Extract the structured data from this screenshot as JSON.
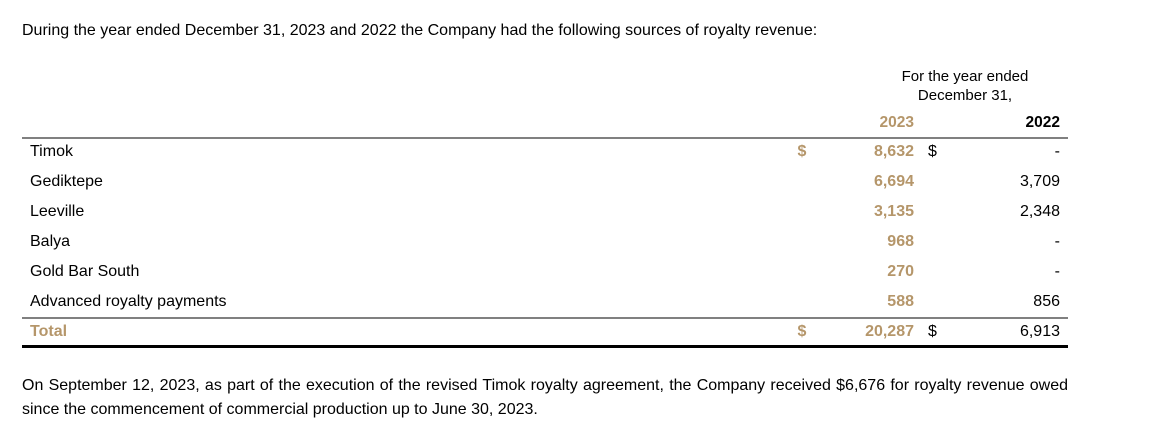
{
  "intro": "During the year ended December 31, 2023 and 2022 the Company had the following sources of royalty revenue:",
  "header": {
    "line1": "For the year ended",
    "line2": "December 31,",
    "col1": "2023",
    "col2": "2022"
  },
  "currency": "$",
  "rows": [
    {
      "label": "Timok",
      "v2023": "8,632",
      "v2022": "-",
      "dollar": true
    },
    {
      "label": "Gediktepe",
      "v2023": "6,694",
      "v2022": "3,709"
    },
    {
      "label": "Leeville",
      "v2023": "3,135",
      "v2022": "2,348"
    },
    {
      "label": "Balya",
      "v2023": "968",
      "v2022": "-"
    },
    {
      "label": "Gold Bar South",
      "v2023": "270",
      "v2022": "-"
    },
    {
      "label": "Advanced royalty payments",
      "v2023": "588",
      "v2022": "856"
    }
  ],
  "total": {
    "label": "Total",
    "v2023": "20,287",
    "v2022": "6,913"
  },
  "footnote": "On September 12, 2023, as part of the execution of the revised Timok royalty agreement, the Company received $6,676 for royalty revenue owed since the commencement of commercial production up to June 30, 2023.",
  "colors": {
    "accent": "#b5966a"
  }
}
